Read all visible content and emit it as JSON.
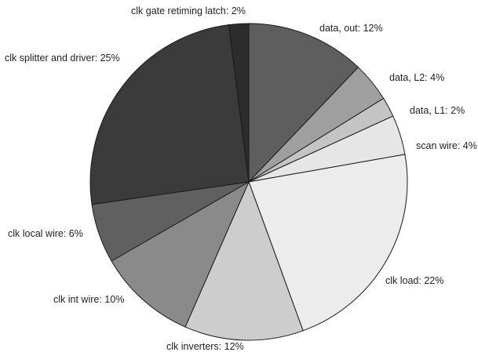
{
  "chart_data": {
    "type": "pie",
    "title": "",
    "start": "top",
    "direction": "clockwise",
    "legend": "none",
    "slices": [
      {
        "label": "data, out: 12%",
        "value": 12,
        "color": "#5e5e5e"
      },
      {
        "label": "data, L2: 4%",
        "value": 4,
        "color": "#9f9f9f"
      },
      {
        "label": "data, L1: 2%",
        "value": 2,
        "color": "#c4c4c4"
      },
      {
        "label": "scan wire: 4%",
        "value": 4,
        "color": "#e6e6e6"
      },
      {
        "label": "clk load: 22%",
        "value": 22,
        "color": "#ececec"
      },
      {
        "label": "clk inverters: 12%",
        "value": 12,
        "color": "#cdcdcd"
      },
      {
        "label": "clk int wire: 10%",
        "value": 10,
        "color": "#8a8a8a"
      },
      {
        "label": "clk local wire: 6%",
        "value": 6,
        "color": "#606060"
      },
      {
        "label": "clk splitter and driver: 25%",
        "value": 25,
        "color": "#3b3b3b"
      },
      {
        "label": "clk gate retiming latch: 2%",
        "value": 2,
        "color": "#2c2c2c"
      }
    ]
  }
}
